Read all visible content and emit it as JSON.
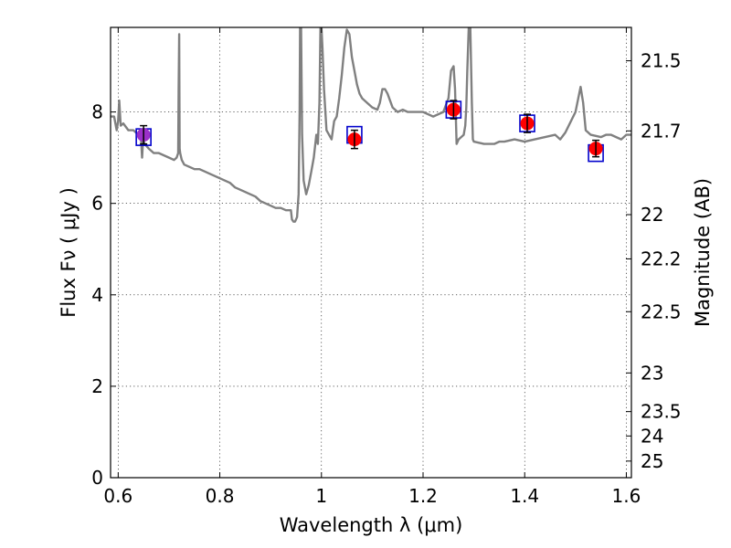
{
  "chart_data": {
    "type": "scatter",
    "xlabel": "Wavelength  λ (μm)",
    "ylabel": "Flux  Fν  ( μJy )",
    "y2label": "Magnitude (AB)",
    "xlim": [
      0.585,
      1.61
    ],
    "ylim": [
      0,
      9.85
    ],
    "grid": true,
    "x_ticks": [
      "0.6",
      "0.8",
      "1",
      "1.2",
      "1.4",
      "1.6"
    ],
    "x_tick_values": [
      0.6,
      0.8,
      1.0,
      1.2,
      1.4,
      1.6
    ],
    "y_ticks": [
      "0",
      "2",
      "4",
      "6",
      "8"
    ],
    "y_tick_values": [
      0,
      2,
      4,
      6,
      8
    ],
    "y2_ticks": [
      "21.5",
      "21.7",
      "22",
      "22.2",
      "22.5",
      "23",
      "23.5",
      "24",
      "25"
    ],
    "y2_tick_values": [
      21.5,
      21.7,
      22.0,
      22.2,
      22.5,
      23.0,
      23.5,
      24.0,
      25.0
    ],
    "template_spectrum": {
      "color": "#808080",
      "x": [
        0.585,
        0.592,
        0.597,
        0.6,
        0.602,
        0.605,
        0.61,
        0.62,
        0.63,
        0.64,
        0.645,
        0.647,
        0.649,
        0.652,
        0.656,
        0.66,
        0.67,
        0.68,
        0.69,
        0.7,
        0.71,
        0.715,
        0.718,
        0.719,
        0.72,
        0.721,
        0.722,
        0.725,
        0.73,
        0.74,
        0.75,
        0.76,
        0.77,
        0.78,
        0.79,
        0.8,
        0.81,
        0.82,
        0.83,
        0.84,
        0.85,
        0.86,
        0.87,
        0.88,
        0.89,
        0.9,
        0.91,
        0.92,
        0.93,
        0.94,
        0.942,
        0.945,
        0.948,
        0.952,
        0.955,
        0.957,
        0.958,
        0.96,
        0.962,
        0.965,
        0.97,
        0.975,
        0.98,
        0.985,
        0.99,
        0.993,
        0.996,
        0.998,
        1.0,
        1.002,
        1.005,
        1.01,
        1.02,
        1.025,
        1.03,
        1.035,
        1.04,
        1.045,
        1.05,
        1.055,
        1.06,
        1.065,
        1.07,
        1.075,
        1.08,
        1.09,
        1.1,
        1.11,
        1.115,
        1.12,
        1.125,
        1.13,
        1.14,
        1.15,
        1.16,
        1.17,
        1.18,
        1.2,
        1.22,
        1.24,
        1.25,
        1.255,
        1.26,
        1.263,
        1.266,
        1.27,
        1.28,
        1.283,
        1.285,
        1.287,
        1.29,
        1.293,
        1.296,
        1.298,
        1.3,
        1.32,
        1.34,
        1.35,
        1.36,
        1.38,
        1.4,
        1.42,
        1.44,
        1.46,
        1.47,
        1.48,
        1.5,
        1.51,
        1.515,
        1.52,
        1.53,
        1.55,
        1.56,
        1.57,
        1.58,
        1.59,
        1.6,
        1.61
      ],
      "y": [
        7.9,
        7.9,
        7.6,
        7.8,
        8.25,
        7.7,
        7.75,
        7.6,
        7.6,
        7.5,
        7.4,
        7.0,
        7.4,
        7.3,
        7.25,
        7.2,
        7.1,
        7.1,
        7.05,
        7.0,
        6.95,
        7.0,
        7.1,
        8.5,
        9.7,
        7.2,
        7.1,
        6.95,
        6.85,
        6.8,
        6.75,
        6.75,
        6.7,
        6.65,
        6.6,
        6.55,
        6.5,
        6.45,
        6.35,
        6.3,
        6.25,
        6.2,
        6.15,
        6.05,
        6.0,
        5.95,
        5.9,
        5.9,
        5.85,
        5.85,
        5.65,
        5.6,
        5.6,
        5.7,
        6.2,
        8.0,
        9.85,
        9.85,
        7.5,
        6.5,
        6.2,
        6.4,
        6.7,
        7.0,
        7.5,
        7.3,
        8.2,
        9.85,
        9.85,
        9.4,
        8.5,
        7.6,
        7.4,
        7.8,
        7.9,
        8.3,
        8.8,
        9.4,
        9.8,
        9.7,
        9.2,
        8.9,
        8.6,
        8.4,
        8.3,
        8.2,
        8.1,
        8.05,
        8.2,
        8.5,
        8.5,
        8.4,
        8.1,
        8.0,
        8.05,
        8.0,
        8.0,
        8.0,
        7.9,
        8.0,
        8.3,
        8.9,
        9.0,
        8.5,
        7.3,
        7.4,
        7.5,
        7.7,
        8.1,
        8.9,
        9.85,
        9.85,
        8.2,
        7.4,
        7.35,
        7.3,
        7.3,
        7.35,
        7.35,
        7.4,
        7.35,
        7.4,
        7.45,
        7.5,
        7.4,
        7.55,
        8.0,
        8.55,
        8.2,
        7.6,
        7.5,
        7.45,
        7.5,
        7.5,
        7.45,
        7.4,
        7.5,
        7.5
      ]
    },
    "series": [
      {
        "type": "model_box",
        "color": "#0000cc",
        "x": [
          0.65,
          1.065,
          1.26,
          1.405,
          1.54
        ],
        "y": [
          7.45,
          7.5,
          8.05,
          7.75,
          7.1
        ]
      },
      {
        "type": "observed",
        "color": "#ff0000",
        "first_color": "#9b30c8",
        "x": [
          0.65,
          1.065,
          1.26,
          1.405,
          1.54
        ],
        "y": [
          7.5,
          7.4,
          8.05,
          7.75,
          7.2
        ],
        "yerr": [
          0.2,
          0.2,
          0.2,
          0.2,
          0.18
        ]
      }
    ]
  }
}
